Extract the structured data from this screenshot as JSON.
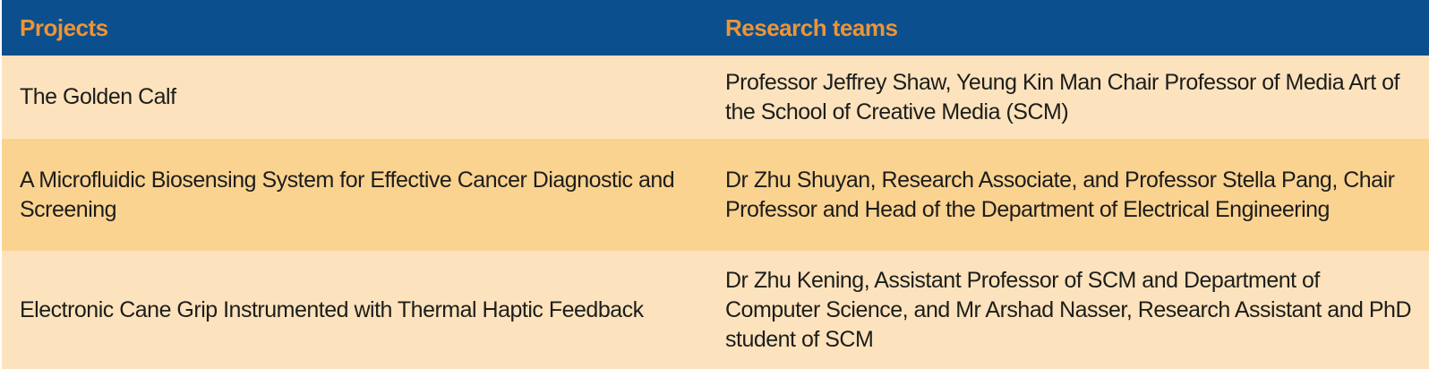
{
  "table": {
    "columns": [
      {
        "label": "Projects"
      },
      {
        "label": "Research teams"
      }
    ],
    "rows": [
      {
        "project": "The Golden Calf",
        "team": "Professor Jeffrey Shaw, Yeung Kin Man Chair Professor of Media Art of the School of Creative Media (SCM)"
      },
      {
        "project": "A Microfluidic Biosensing System for Effective Cancer Diagnostic and Screening",
        "team": "Dr Zhu Shuyan, Research Associate, and Professor Stella Pang, Chair Professor and Head of the Department of Electrical Engineering"
      },
      {
        "project": "Electronic Cane Grip Instrumented with Thermal Haptic Feedback",
        "team": "Dr Zhu Kening, Assistant Professor of SCM and Department of Computer Science, and Mr Arshad Nasser, Research Assistant and PhD student of SCM"
      }
    ],
    "colors": {
      "header_bg": "#0b4f8e",
      "header_text": "#ed9435",
      "row_light": "#fde3bd",
      "row_dark": "#fbd391",
      "body_text": "#1d1d1b"
    }
  }
}
